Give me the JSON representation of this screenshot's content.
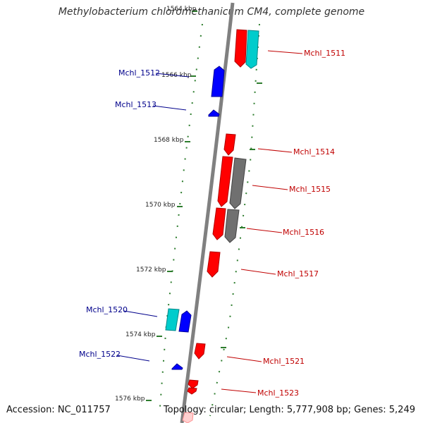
{
  "title": "Methylobacterium chloromethanicum CM4, complete genome",
  "footer": {
    "accession": "Accession: NC_011757",
    "summary": "Topology: circular; Length: 5,777,908 bp; Genes: 5,249"
  },
  "ticks": [
    "1564 kbp",
    "1566 kbp",
    "1568 kbp",
    "1570 kbp",
    "1572 kbp",
    "1574 kbp",
    "1576 kbp"
  ],
  "genes_forward": [
    "Mchl_1512",
    "Mchl_1513",
    "Mchl_1520",
    "Mchl_1522"
  ],
  "genes_reverse": [
    "Mchl_1511",
    "Mchl_1514",
    "Mchl_1515",
    "Mchl_1516",
    "Mchl_1517",
    "Mchl_1521",
    "Mchl_1523"
  ],
  "colors": {
    "forward_label": "#00008b",
    "reverse_label": "#c00000",
    "forward_gene": "#0000ff",
    "reverse_gene": "#ff0000",
    "cyan_gene": "#00cccc",
    "gray_gene": "#707070",
    "backbone": "#808080",
    "dots": "#2e7d2e"
  }
}
